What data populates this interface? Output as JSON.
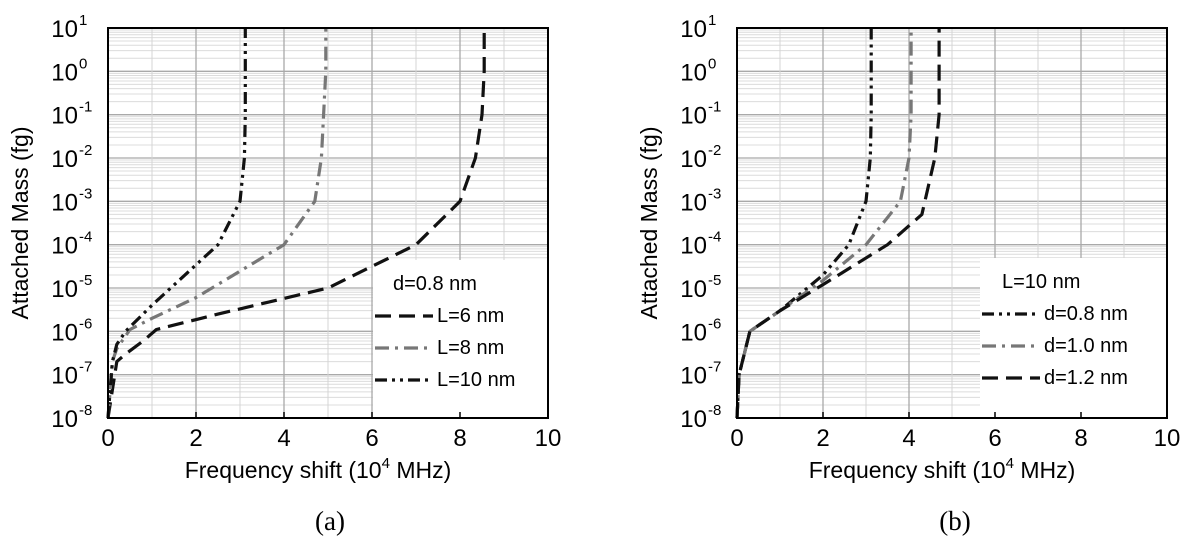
{
  "chart_data": [
    {
      "type": "line",
      "panel": "(a)",
      "xlabel": "Frequency shift (10",
      "xlabel_sup": "4",
      "xlabel_suffix": " MHz)",
      "ylabel": "Attached Mass (fg)",
      "xlim": [
        0,
        10
      ],
      "ylim_log10": [
        -8,
        1
      ],
      "y_scale": "log",
      "x_ticks": [
        "0",
        "2",
        "4",
        "6",
        "8",
        "10"
      ],
      "y_ticks": [
        {
          "base": "10",
          "exp": "1"
        },
        {
          "base": "10",
          "exp": "0"
        },
        {
          "base": "10",
          "exp": "-1"
        },
        {
          "base": "10",
          "exp": "-2"
        },
        {
          "base": "10",
          "exp": "-3"
        },
        {
          "base": "10",
          "exp": "-4"
        },
        {
          "base": "10",
          "exp": "-5"
        },
        {
          "base": "10",
          "exp": "-6"
        },
        {
          "base": "10",
          "exp": "-7"
        },
        {
          "base": "10",
          "exp": "-8"
        }
      ],
      "grid": true,
      "legend_title": "d=0.8 nm",
      "legend_position": "bottom-right",
      "series": [
        {
          "name": "L=6 nm",
          "style": "dashed",
          "color": "#111111",
          "x": [
            0.0,
            0.2,
            0.4,
            0.8,
            1.1,
            2.5,
            5.0,
            7.0,
            8.0,
            8.35,
            8.5,
            8.55,
            8.55
          ],
          "y": [
            1e-08,
            2e-07,
            3e-07,
            6e-07,
            1.1e-06,
            2.5e-06,
            1e-05,
            0.0001,
            0.001,
            0.01,
            0.1,
            1,
            8
          ]
        },
        {
          "name": "L=8 nm",
          "style": "dashdot",
          "color": "#777777",
          "x": [
            0.0,
            0.1,
            0.2,
            0.5,
            1.0,
            2.0,
            4.0,
            4.7,
            4.85,
            4.9,
            4.95,
            4.95
          ],
          "y": [
            1e-08,
            2e-07,
            4e-07,
            1.1e-06,
            2e-06,
            6e-06,
            0.0001,
            0.001,
            0.01,
            0.1,
            1,
            10
          ]
        },
        {
          "name": "L=10 nm",
          "style": "dashdotdot",
          "color": "#111111",
          "x": [
            0.0,
            0.1,
            0.2,
            0.4,
            1.0,
            2.5,
            3.0,
            3.1,
            3.12,
            3.12
          ],
          "y": [
            1e-08,
            2e-07,
            5e-07,
            1e-06,
            4e-06,
            0.0001,
            0.001,
            0.01,
            0.1,
            10
          ]
        }
      ],
      "caption": "(a)"
    },
    {
      "type": "line",
      "panel": "(b)",
      "xlabel": "Frequency shift (10",
      "xlabel_sup": "4",
      "xlabel_suffix": " MHz)",
      "ylabel": "Attached Mass (fg)",
      "xlim": [
        0,
        10
      ],
      "ylim_log10": [
        -8,
        1
      ],
      "y_scale": "log",
      "x_ticks": [
        "0",
        "2",
        "4",
        "6",
        "8",
        "10"
      ],
      "y_ticks": [
        {
          "base": "10",
          "exp": "1"
        },
        {
          "base": "10",
          "exp": "0"
        },
        {
          "base": "10",
          "exp": "-1"
        },
        {
          "base": "10",
          "exp": "-2"
        },
        {
          "base": "10",
          "exp": "-3"
        },
        {
          "base": "10",
          "exp": "-4"
        },
        {
          "base": "10",
          "exp": "-5"
        },
        {
          "base": "10",
          "exp": "-6"
        },
        {
          "base": "10",
          "exp": "-7"
        },
        {
          "base": "10",
          "exp": "-8"
        }
      ],
      "grid": true,
      "legend_title": "L=10 nm",
      "legend_position": "bottom-right",
      "series": [
        {
          "name": "d=0.8 nm",
          "style": "dashdotdot",
          "color": "#111111",
          "x": [
            0.0,
            0.05,
            0.3,
            1.0,
            2.0,
            2.6,
            3.0,
            3.1,
            3.12,
            3.12
          ],
          "y": [
            1e-08,
            1e-07,
            1e-06,
            3e-06,
            2e-05,
            0.0001,
            0.001,
            0.01,
            0.1,
            10
          ]
        },
        {
          "name": "d=1.0 nm",
          "style": "dashdot",
          "color": "#777777",
          "x": [
            0.0,
            0.05,
            0.3,
            1.0,
            2.0,
            3.0,
            3.8,
            4.0,
            4.05,
            4.05
          ],
          "y": [
            1e-08,
            1e-07,
            1e-06,
            3e-06,
            1.5e-05,
            0.0001,
            0.001,
            0.01,
            0.1,
            10
          ]
        },
        {
          "name": "d=1.2 nm",
          "style": "dashed",
          "color": "#111111",
          "x": [
            0.0,
            0.05,
            0.3,
            1.0,
            2.0,
            3.5,
            4.3,
            4.6,
            4.7,
            4.7
          ],
          "y": [
            1e-08,
            1e-07,
            1e-06,
            3e-06,
            1.2e-05,
            0.0001,
            0.0005,
            0.01,
            0.1,
            10
          ]
        }
      ],
      "caption": "(b)"
    }
  ]
}
